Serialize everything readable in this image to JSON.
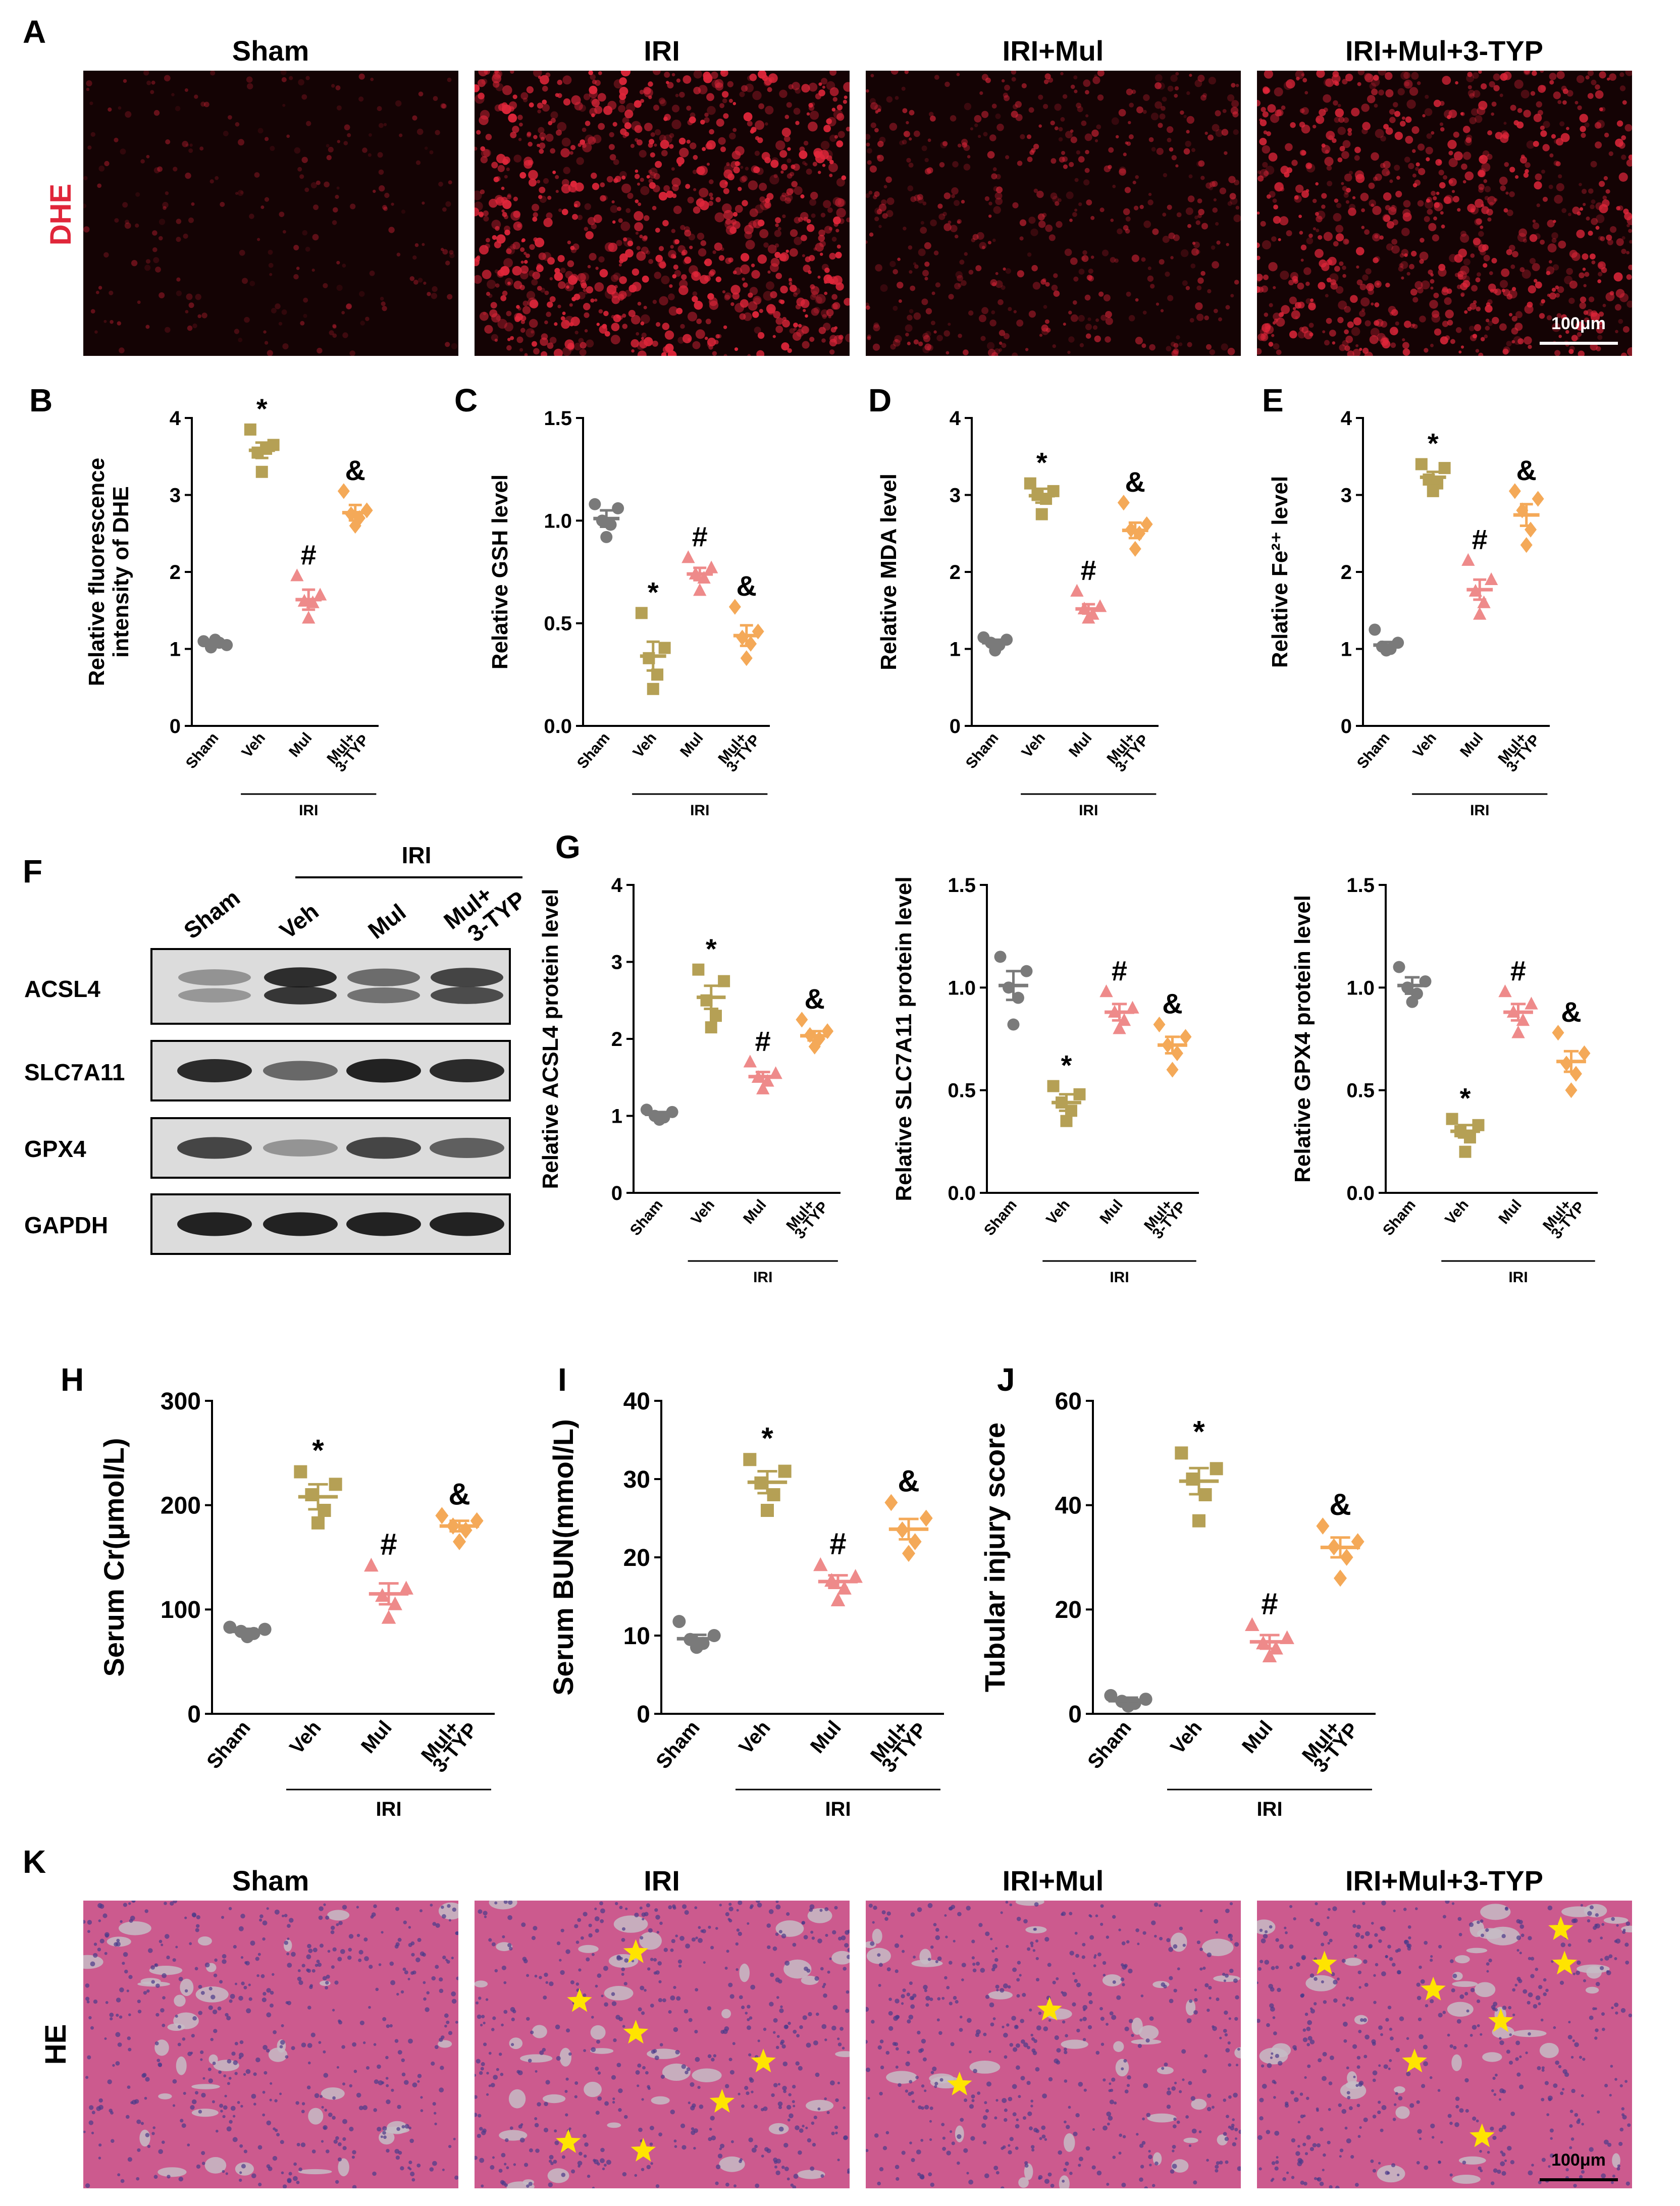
{
  "colors": {
    "sham": "#7a7a7a",
    "veh": "#b5a055",
    "mul": "#ee8a8a",
    "typ": "#f4a958",
    "fluor_bg": "#140304",
    "fluor_dot": "#e0263a",
    "he_bg": "#cc5a8e",
    "he_lumen": "#c6bcc6",
    "he_nuclei": "#4a3a8a",
    "star": "#ffe400"
  },
  "panel_a": {
    "letter": "A",
    "stain_label": "DHE",
    "titles": [
      "Sham",
      "IRI",
      "IRI+Mul",
      "IRI+Mul+3-TYP"
    ],
    "signal_levels": [
      0.12,
      0.95,
      0.45,
      0.8
    ],
    "scale_bar": "100μm"
  },
  "panel_f": {
    "letter": "F",
    "group_label": "IRI",
    "lanes": [
      "Sham",
      "Veh",
      "Mul",
      "Mul+",
      "3-TYP"
    ],
    "bands": [
      {
        "name": "ACSL4",
        "intensity": [
          0.35,
          1.0,
          0.6,
          0.85
        ]
      },
      {
        "name": "SLC7A11",
        "intensity": [
          0.9,
          0.55,
          0.95,
          0.9
        ]
      },
      {
        "name": "GPX4",
        "intensity": [
          0.75,
          0.3,
          0.75,
          0.6
        ]
      },
      {
        "name": "GAPDH",
        "intensity": [
          0.95,
          0.95,
          0.95,
          0.95
        ]
      }
    ]
  },
  "panel_g_letter": "G",
  "panel_k": {
    "letter": "K",
    "stain_label": "HE",
    "titles": [
      "Sham",
      "IRI",
      "IRI+Mul",
      "IRI+Mul+3-TYP"
    ],
    "star_counts": [
      0,
      7,
      2,
      7
    ],
    "scale_bar": "100μm"
  },
  "chart_data": [
    {
      "id": "B",
      "letter": "B",
      "type": "scatter",
      "title": "",
      "xlabel": "",
      "ylabel": "Relative fluorescence intensity of DHE",
      "ylabel_lines": [
        "Relative fluorescence",
        "intensity of DHE"
      ],
      "ylim": [
        0,
        4
      ],
      "yticks": [
        "0",
        "1",
        "2",
        "3",
        "4"
      ],
      "categories": [
        "Sham",
        "Veh",
        "Mul",
        "Mul+",
        "3-TYP"
      ],
      "group_label": "IRI",
      "means": [
        1.07,
        3.58,
        1.64,
        2.77
      ],
      "sems": [
        0.04,
        0.1,
        0.13,
        0.1
      ],
      "sig": [
        "",
        "*",
        "#",
        "&"
      ],
      "points": [
        [
          1.1,
          1.05,
          1.02,
          1.08,
          1.12
        ],
        [
          3.85,
          3.65,
          3.55,
          3.6,
          3.3
        ],
        [
          1.95,
          1.7,
          1.62,
          1.6,
          1.4
        ],
        [
          3.05,
          2.8,
          2.75,
          2.7,
          2.6
        ]
      ]
    },
    {
      "id": "C",
      "letter": "C",
      "type": "scatter",
      "title": "",
      "xlabel": "",
      "ylabel": "Relative GSH level",
      "ylabel_lines": [
        "Relative GSH level"
      ],
      "ylim": [
        0,
        1.5
      ],
      "yticks": [
        "0.0",
        "0.5",
        "1.0",
        "1.5"
      ],
      "categories": [
        "Sham",
        "Veh",
        "Mul",
        "Mul+",
        "3-TYP"
      ],
      "group_label": "IRI",
      "means": [
        1.01,
        0.34,
        0.74,
        0.44
      ],
      "sems": [
        0.04,
        0.07,
        0.03,
        0.05
      ],
      "sig": [
        "",
        "*",
        "#",
        "&"
      ],
      "points": [
        [
          1.08,
          1.06,
          1.0,
          0.98,
          0.92
        ],
        [
          0.55,
          0.38,
          0.33,
          0.25,
          0.18
        ],
        [
          0.82,
          0.77,
          0.74,
          0.72,
          0.66
        ],
        [
          0.58,
          0.46,
          0.43,
          0.4,
          0.33
        ]
      ]
    },
    {
      "id": "D",
      "letter": "D",
      "type": "scatter",
      "title": "",
      "xlabel": "",
      "ylabel": "Relative MDA level",
      "ylabel_lines": [
        "Relative MDA level"
      ],
      "ylim": [
        0,
        4
      ],
      "yticks": [
        "0",
        "1",
        "2",
        "3",
        "4"
      ],
      "categories": [
        "Sham",
        "Veh",
        "Mul",
        "Mul+",
        "3-TYP"
      ],
      "group_label": "IRI",
      "means": [
        1.08,
        2.99,
        1.52,
        2.54
      ],
      "sems": [
        0.04,
        0.09,
        0.06,
        0.1
      ],
      "sig": [
        "",
        "*",
        "#",
        "&"
      ],
      "points": [
        [
          1.15,
          1.12,
          1.08,
          1.05,
          0.98
        ],
        [
          3.15,
          3.05,
          3.0,
          2.95,
          2.75
        ],
        [
          1.75,
          1.55,
          1.52,
          1.45,
          1.4
        ],
        [
          2.9,
          2.62,
          2.55,
          2.5,
          2.3
        ]
      ]
    },
    {
      "id": "E",
      "letter": "E",
      "type": "scatter",
      "title": "",
      "xlabel": "",
      "ylabel": "Relative Fe²⁺ level",
      "ylabel_lines": [
        "Relative Fe²⁺ level"
      ],
      "ylim": [
        0,
        4
      ],
      "yticks": [
        "0",
        "1",
        "2",
        "3",
        "4"
      ],
      "categories": [
        "Sham",
        "Veh",
        "Mul",
        "Mul+",
        "3-TYP"
      ],
      "group_label": "IRI",
      "means": [
        1.05,
        3.23,
        1.77,
        2.74
      ],
      "sems": [
        0.04,
        0.07,
        0.13,
        0.14
      ],
      "sig": [
        "",
        "*",
        "#",
        "&"
      ],
      "points": [
        [
          1.25,
          1.08,
          1.03,
          1.0,
          0.98
        ],
        [
          3.4,
          3.35,
          3.2,
          3.15,
          3.05
        ],
        [
          2.15,
          1.9,
          1.75,
          1.6,
          1.45
        ],
        [
          3.05,
          2.95,
          2.8,
          2.55,
          2.35
        ]
      ]
    },
    {
      "id": "G1",
      "letter": "",
      "type": "scatter",
      "title": "",
      "xlabel": "",
      "ylabel": "Relative ACSL4 protein level",
      "ylabel_lines": [
        "Relative ACSL4 protein level"
      ],
      "ylim": [
        0,
        4
      ],
      "yticks": [
        "0",
        "1",
        "2",
        "3",
        "4"
      ],
      "categories": [
        "Sham",
        "Veh",
        "Mul",
        "Mul+",
        "3-TYP"
      ],
      "group_label": "IRI",
      "means": [
        1.02,
        2.54,
        1.51,
        2.04
      ],
      "sems": [
        0.03,
        0.15,
        0.06,
        0.06
      ],
      "sig": [
        "",
        "*",
        "#",
        "&"
      ],
      "points": [
        [
          1.08,
          1.05,
          1.0,
          0.98,
          0.95
        ],
        [
          2.9,
          2.75,
          2.5,
          2.3,
          2.15
        ],
        [
          1.7,
          1.55,
          1.5,
          1.45,
          1.35
        ],
        [
          2.25,
          2.1,
          2.05,
          2.0,
          1.9
        ]
      ]
    },
    {
      "id": "G2",
      "letter": "",
      "type": "scatter",
      "title": "",
      "xlabel": "",
      "ylabel": "Relative SLC7A11 protein level",
      "ylabel_lines": [
        "Relative SLC7A11 protein level"
      ],
      "ylim": [
        0,
        1.5
      ],
      "yticks": [
        "0.0",
        "0.5",
        "1.0",
        "1.5"
      ],
      "categories": [
        "Sham",
        "Veh",
        "Mul",
        "Mul+",
        "3-TYP"
      ],
      "group_label": "IRI",
      "means": [
        1.01,
        0.44,
        0.88,
        0.72
      ],
      "sems": [
        0.07,
        0.04,
        0.04,
        0.04
      ],
      "sig": [
        "",
        "*",
        "#",
        "&"
      ],
      "points": [
        [
          1.15,
          1.08,
          1.0,
          0.95,
          0.82
        ],
        [
          0.52,
          0.48,
          0.44,
          0.4,
          0.35
        ],
        [
          0.98,
          0.9,
          0.88,
          0.84,
          0.8
        ],
        [
          0.82,
          0.76,
          0.72,
          0.68,
          0.6
        ]
      ]
    },
    {
      "id": "G3",
      "letter": "",
      "type": "scatter",
      "title": "",
      "xlabel": "",
      "ylabel": "Relative GPX4 protein level",
      "ylabel_lines": [
        "Relative GPX4 protein level"
      ],
      "ylim": [
        0,
        1.5
      ],
      "yticks": [
        "0.0",
        "0.5",
        "1.0",
        "1.5"
      ],
      "categories": [
        "Sham",
        "Veh",
        "Mul",
        "Mul+",
        "3-TYP"
      ],
      "group_label": "IRI",
      "means": [
        1.01,
        0.3,
        0.88,
        0.64
      ],
      "sems": [
        0.04,
        0.03,
        0.04,
        0.05
      ],
      "sig": [
        "",
        "*",
        "#",
        "&"
      ],
      "points": [
        [
          1.1,
          1.03,
          1.0,
          0.97,
          0.93
        ],
        [
          0.36,
          0.33,
          0.3,
          0.27,
          0.2
        ],
        [
          0.98,
          0.92,
          0.88,
          0.84,
          0.78
        ],
        [
          0.78,
          0.68,
          0.63,
          0.58,
          0.5
        ]
      ]
    },
    {
      "id": "H",
      "letter": "H",
      "type": "scatter",
      "title": "",
      "xlabel": "",
      "ylabel": "Serum Cr(μmol/L)",
      "ylabel_lines": [
        "Serum Cr(μmol/L)"
      ],
      "ylim": [
        0,
        300
      ],
      "yticks": [
        "0",
        "100",
        "200",
        "300"
      ],
      "categories": [
        "Sham",
        "Veh",
        "Mul",
        "Mul+",
        "3-TYP"
      ],
      "group_label": "IRI",
      "means": [
        79,
        208,
        115,
        180
      ],
      "sems": [
        2.5,
        12,
        10,
        5
      ],
      "sig": [
        "",
        "*",
        "#",
        "&"
      ],
      "points": [
        [
          83,
          81,
          79,
          77,
          74
        ],
        [
          232,
          220,
          210,
          195,
          183
        ],
        [
          142,
          120,
          113,
          105,
          92
        ],
        [
          190,
          185,
          180,
          176,
          165
        ]
      ]
    },
    {
      "id": "I",
      "letter": "I",
      "type": "scatter",
      "title": "",
      "xlabel": "",
      "ylabel": "Serum BUN(mmol/L)",
      "ylabel_lines": [
        "Serum BUN(mmol/L)"
      ],
      "ylim": [
        0,
        40
      ],
      "yticks": [
        "0",
        "10",
        "20",
        "30",
        "40"
      ],
      "categories": [
        "Sham",
        "Veh",
        "Mul",
        "Mul+",
        "3-TYP"
      ],
      "group_label": "IRI",
      "means": [
        9.6,
        29.6,
        16.9,
        23.6
      ],
      "sems": [
        0.5,
        1.4,
        0.8,
        1.3
      ],
      "sig": [
        "",
        "*",
        "#",
        "&"
      ],
      "points": [
        [
          11.8,
          10.0,
          9.5,
          9.0,
          8.5
        ],
        [
          32.5,
          31.0,
          29.5,
          28.0,
          26.0
        ],
        [
          19.0,
          17.5,
          17.0,
          16.0,
          14.5
        ],
        [
          27.0,
          25.0,
          23.5,
          22.0,
          20.5
        ]
      ]
    },
    {
      "id": "J",
      "letter": "J",
      "type": "scatter",
      "title": "",
      "xlabel": "",
      "ylabel": "Tubular injury score",
      "ylabel_lines": [
        "Tubular injury score"
      ],
      "ylim": [
        0,
        60
      ],
      "yticks": [
        "0",
        "20",
        "40",
        "60"
      ],
      "categories": [
        "Sham",
        "Veh",
        "Mul",
        "Mul+",
        "3-TYP"
      ],
      "group_label": "IRI",
      "means": [
        2.5,
        44.6,
        13.8,
        31.9
      ],
      "sems": [
        0.6,
        2.5,
        1.3,
        1.9
      ],
      "sig": [
        "",
        "*",
        "#",
        "&"
      ],
      "points": [
        [
          3.5,
          2.8,
          2.4,
          2.0,
          1.5
        ],
        [
          50.0,
          47.0,
          45.0,
          42.0,
          37.0
        ],
        [
          17.0,
          14.5,
          13.5,
          12.5,
          11.0
        ],
        [
          36.0,
          33.0,
          32.0,
          30.0,
          26.0
        ]
      ]
    }
  ]
}
